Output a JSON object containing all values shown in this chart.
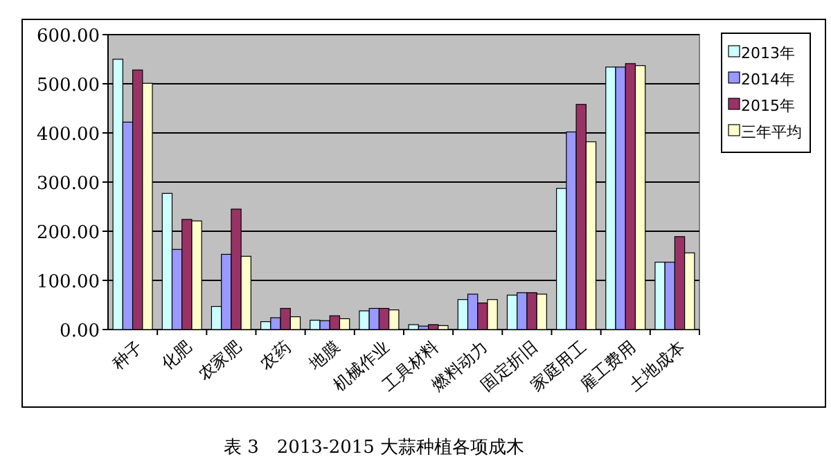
{
  "chart_data": {
    "type": "bar",
    "categories": [
      "种子",
      "化肥",
      "农家肥",
      "农药",
      "地膜",
      "机械作业",
      "工具材料",
      "燃料动力",
      "固定折旧",
      "家庭用工",
      "雇工费用",
      "土地成本"
    ],
    "series": [
      {
        "name": "2013年",
        "color": "#ccffff",
        "values": [
          550,
          277,
          47,
          16,
          19,
          38,
          10,
          61,
          70,
          287,
          534,
          137
        ]
      },
      {
        "name": "2014年",
        "color": "#9999ff",
        "values": [
          422,
          163,
          153,
          24,
          18,
          43,
          7,
          72,
          75,
          402,
          534,
          137
        ]
      },
      {
        "name": "2015年",
        "color": "#993366",
        "values": [
          528,
          224,
          245,
          43,
          28,
          43,
          10,
          54,
          75,
          458,
          541,
          189
        ]
      },
      {
        "name": "三年平均",
        "color": "#ffffcc",
        "values": [
          501,
          221,
          149,
          26,
          22,
          40,
          8,
          61,
          72,
          382,
          537,
          156
        ]
      }
    ],
    "ylim": [
      0,
      600
    ],
    "yticks": [
      {
        "value": 0,
        "label": "0.00"
      },
      {
        "value": 100,
        "label": "100.00"
      },
      {
        "value": 200,
        "label": "200.00"
      },
      {
        "value": 300,
        "label": "300.00"
      },
      {
        "value": 400,
        "label": "400.00"
      },
      {
        "value": 500,
        "label": "500.00"
      },
      {
        "value": 600,
        "label": "600.00"
      }
    ],
    "grid": "y",
    "legend": "right",
    "annotations": [
      "表 3　2013-2015 大蒜种植各项成木"
    ]
  }
}
